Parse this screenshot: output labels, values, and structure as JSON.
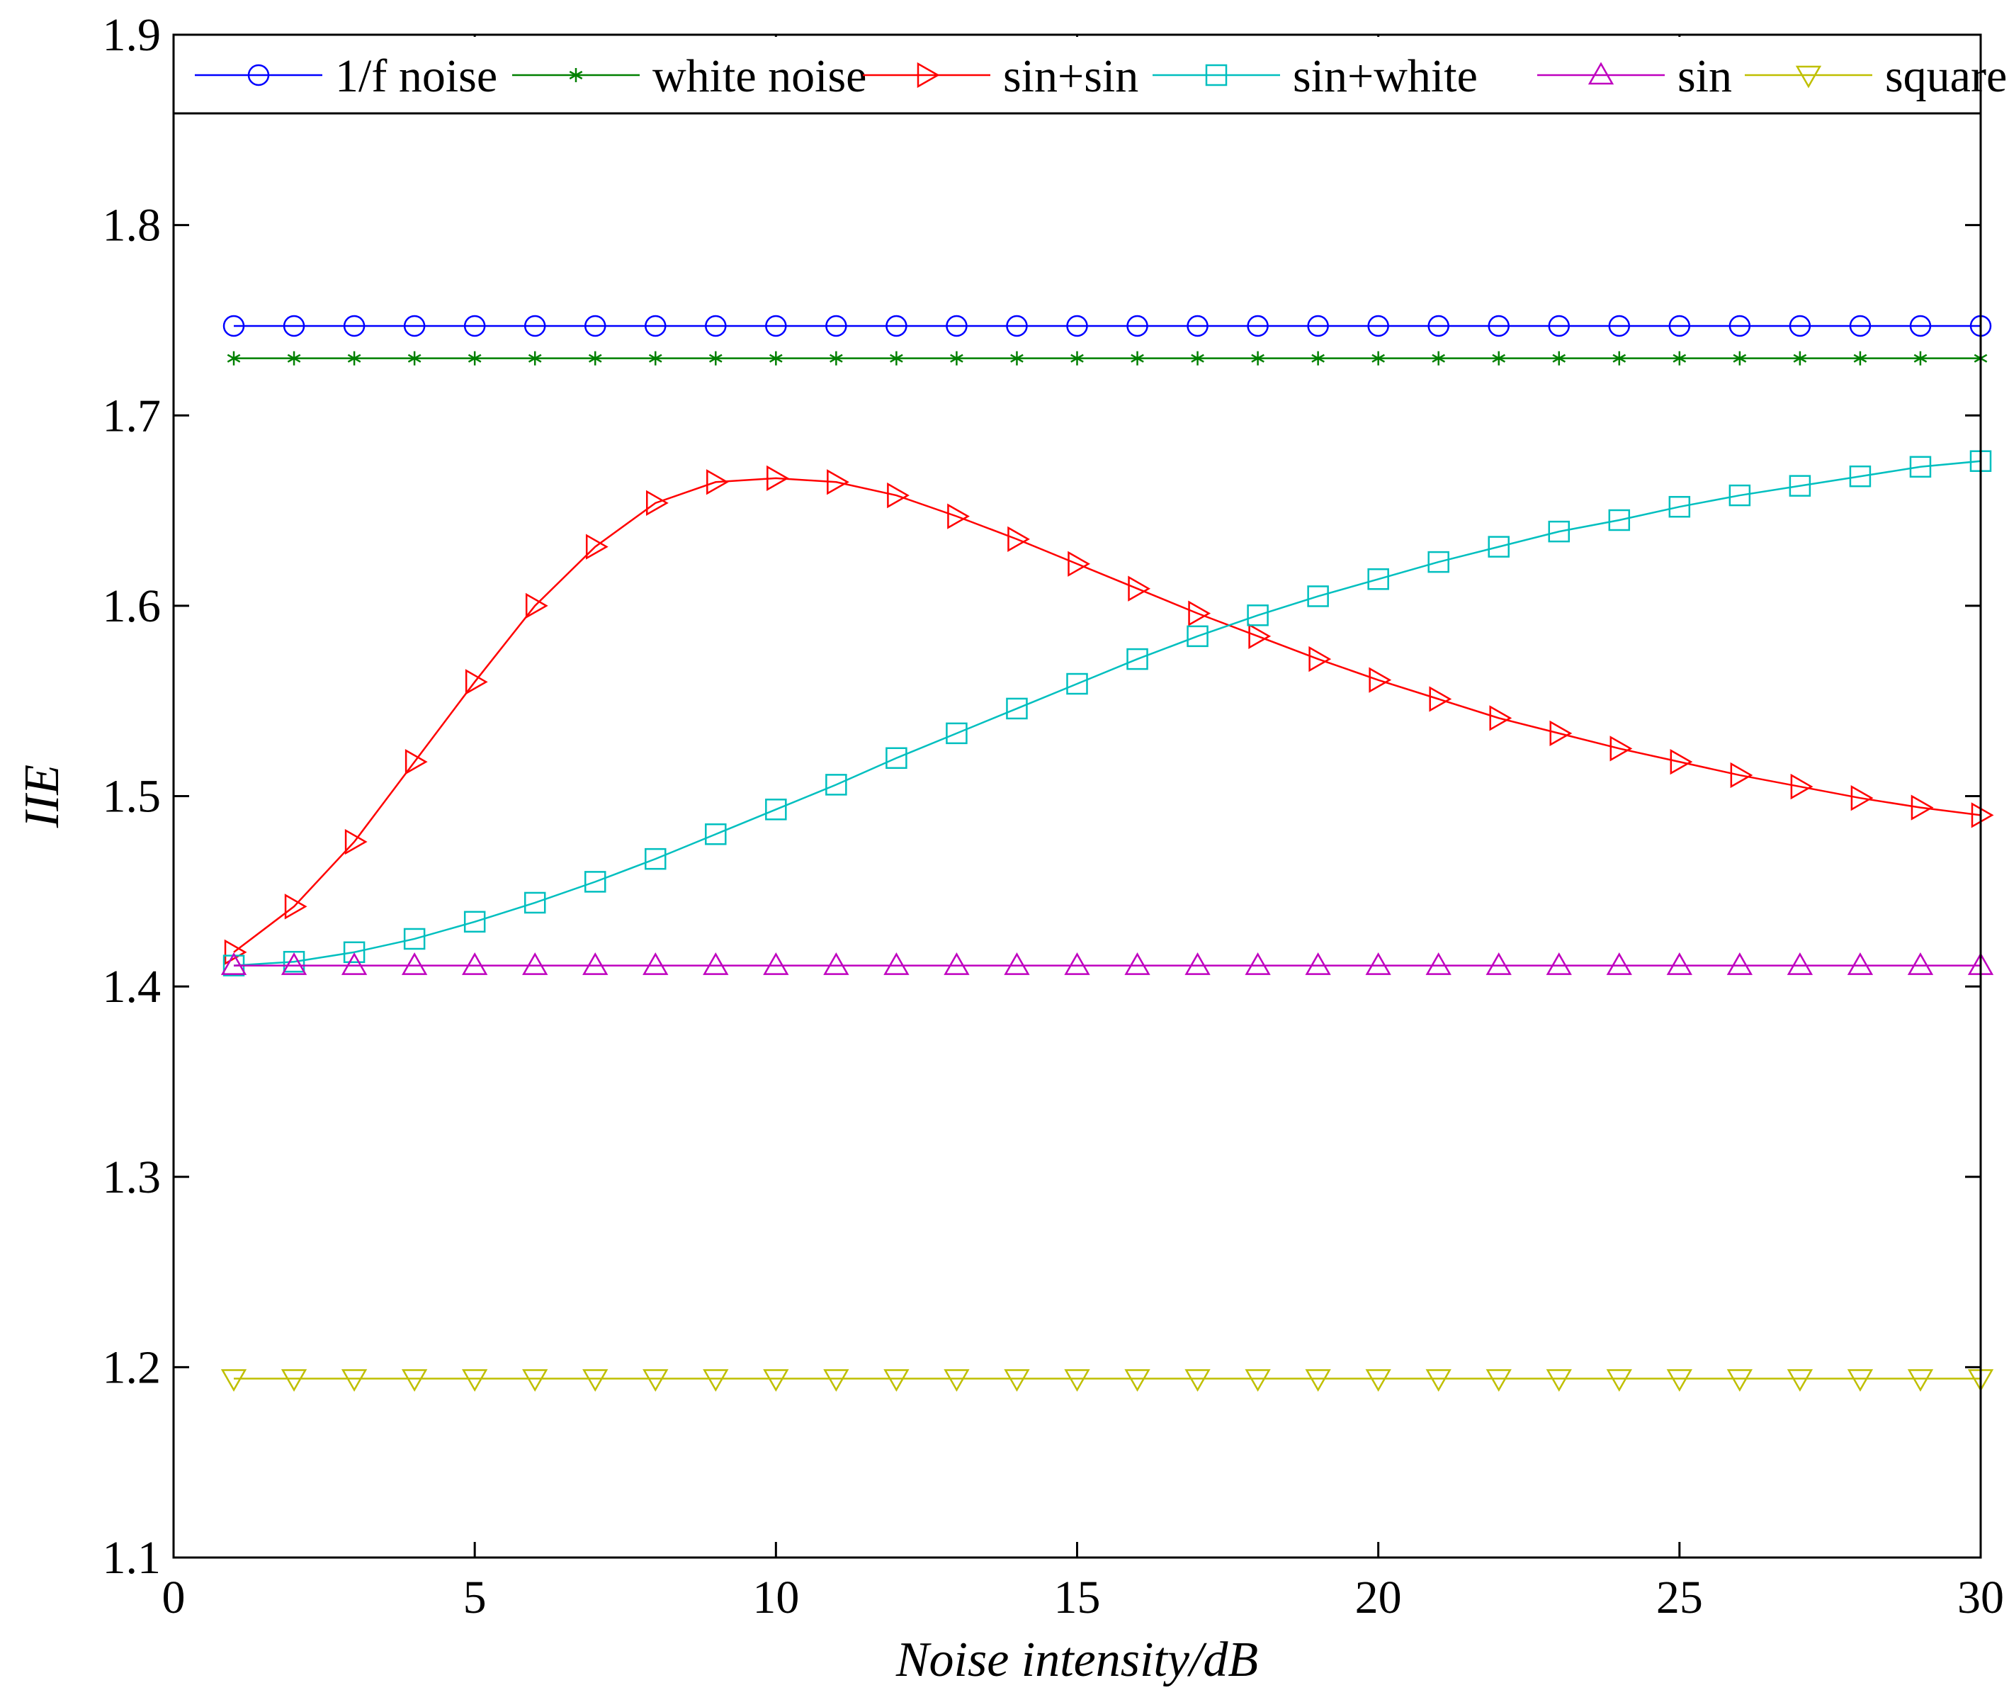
{
  "chart_data": {
    "type": "line",
    "xlabel": "Noise intensity/dB",
    "ylabel": "IIE",
    "xlim": [
      0,
      30
    ],
    "ylim": [
      1.1,
      1.9
    ],
    "xticks": [
      "0",
      "5",
      "10",
      "15",
      "20",
      "25",
      "30"
    ],
    "yticks": [
      "1.1",
      "1.2",
      "1.3",
      "1.4",
      "1.5",
      "1.6",
      "1.7",
      "1.8",
      "1.9"
    ],
    "grid": false,
    "legend": "top",
    "x": [
      1,
      2,
      3,
      4,
      5,
      6,
      7,
      8,
      9,
      10,
      11,
      12,
      13,
      14,
      15,
      16,
      17,
      18,
      19,
      20,
      21,
      22,
      23,
      24,
      25,
      26,
      27,
      28,
      29,
      30
    ],
    "series": [
      {
        "name": "1/f noise",
        "color": "#0000ff",
        "marker": "circle",
        "values": [
          1.747,
          1.747,
          1.747,
          1.747,
          1.747,
          1.747,
          1.747,
          1.747,
          1.747,
          1.747,
          1.747,
          1.747,
          1.747,
          1.747,
          1.747,
          1.747,
          1.747,
          1.747,
          1.747,
          1.747,
          1.747,
          1.747,
          1.747,
          1.747,
          1.747,
          1.747,
          1.747,
          1.747,
          1.747,
          1.747
        ]
      },
      {
        "name": "white noise",
        "color": "#008000",
        "marker": "star",
        "values": [
          1.73,
          1.73,
          1.73,
          1.73,
          1.73,
          1.73,
          1.73,
          1.73,
          1.73,
          1.73,
          1.73,
          1.73,
          1.73,
          1.73,
          1.73,
          1.73,
          1.73,
          1.73,
          1.73,
          1.73,
          1.73,
          1.73,
          1.73,
          1.73,
          1.73,
          1.73,
          1.73,
          1.73,
          1.73,
          1.73
        ]
      },
      {
        "name": "sin+sin",
        "color": "#ff0000",
        "marker": "triangle-right",
        "values": [
          1.418,
          1.442,
          1.476,
          1.518,
          1.56,
          1.6,
          1.631,
          1.654,
          1.665,
          1.667,
          1.665,
          1.658,
          1.647,
          1.635,
          1.622,
          1.609,
          1.596,
          1.584,
          1.572,
          1.561,
          1.551,
          1.541,
          1.533,
          1.525,
          1.518,
          1.511,
          1.505,
          1.499,
          1.494,
          1.49
        ]
      },
      {
        "name": "sin+white",
        "color": "#00bfbf",
        "marker": "square",
        "values": [
          1.411,
          1.413,
          1.418,
          1.425,
          1.434,
          1.444,
          1.455,
          1.467,
          1.48,
          1.493,
          1.506,
          1.52,
          1.533,
          1.546,
          1.559,
          1.572,
          1.584,
          1.595,
          1.605,
          1.614,
          1.623,
          1.631,
          1.639,
          1.645,
          1.652,
          1.658,
          1.663,
          1.668,
          1.673,
          1.676
        ]
      },
      {
        "name": "sin",
        "color": "#bf00bf",
        "marker": "triangle-up",
        "values": [
          1.411,
          1.411,
          1.411,
          1.411,
          1.411,
          1.411,
          1.411,
          1.411,
          1.411,
          1.411,
          1.411,
          1.411,
          1.411,
          1.411,
          1.411,
          1.411,
          1.411,
          1.411,
          1.411,
          1.411,
          1.411,
          1.411,
          1.411,
          1.411,
          1.411,
          1.411,
          1.411,
          1.411,
          1.411,
          1.411
        ]
      },
      {
        "name": "square",
        "color": "#bfbf00",
        "marker": "triangle-down",
        "values": [
          1.194,
          1.194,
          1.194,
          1.194,
          1.194,
          1.194,
          1.194,
          1.194,
          1.194,
          1.194,
          1.194,
          1.194,
          1.194,
          1.194,
          1.194,
          1.194,
          1.194,
          1.194,
          1.194,
          1.194,
          1.194,
          1.194,
          1.194,
          1.194,
          1.194,
          1.194,
          1.194,
          1.194,
          1.194,
          1.194
        ]
      }
    ]
  }
}
